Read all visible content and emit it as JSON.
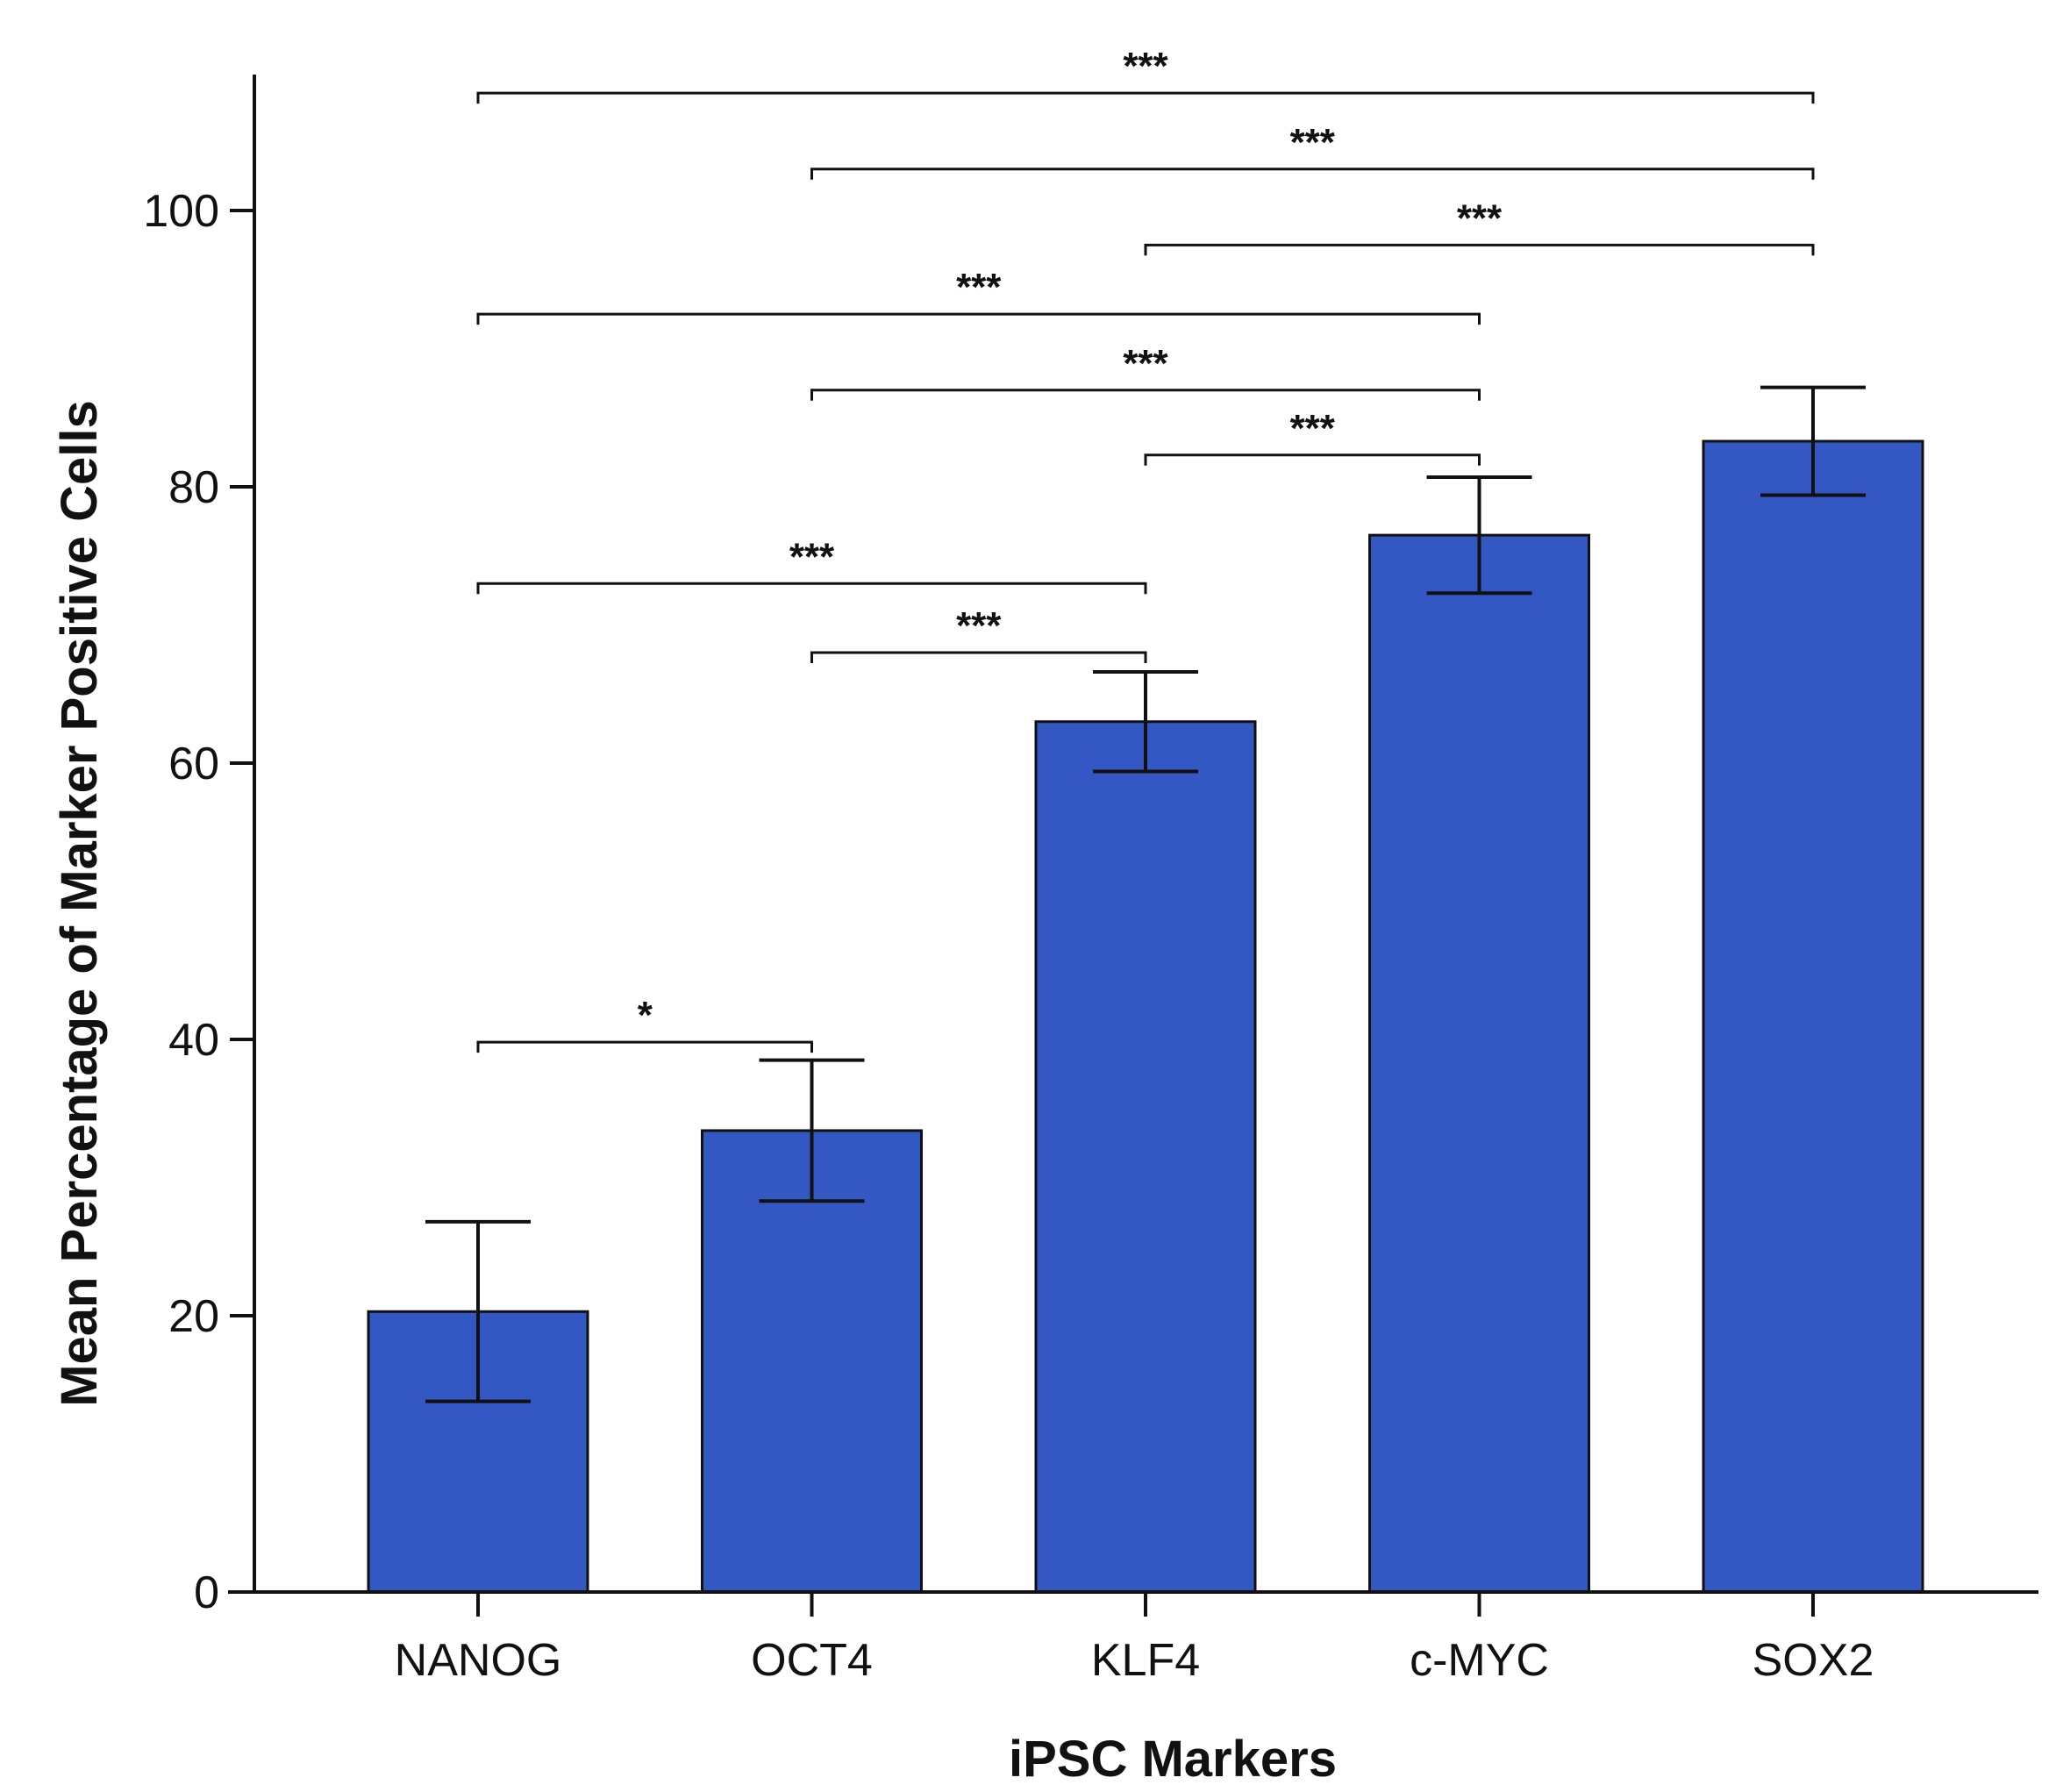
{
  "chart_data": {
    "type": "bar",
    "title": "",
    "xlabel": "iPSC Markers",
    "ylabel": "Mean Percentage of Marker Positive Cells",
    "categories": [
      "NANOG",
      "OCT4",
      "KLF4",
      "c-MYC",
      "SOX2"
    ],
    "values": [
      20.3,
      33.4,
      63.0,
      76.5,
      83.3
    ],
    "errors": [
      6.5,
      5.1,
      3.6,
      4.2,
      3.9
    ],
    "ylim": [
      0,
      110
    ],
    "yticks": [
      0,
      20,
      40,
      60,
      80,
      100
    ],
    "grid": false,
    "bar_color": "#3358c4",
    "significance": [
      {
        "from": "NANOG",
        "to": "SOX2",
        "y": 108.5,
        "label": "***"
      },
      {
        "from": "OCT4",
        "to": "SOX2",
        "y": 103.0,
        "label": "***"
      },
      {
        "from": "KLF4",
        "to": "SOX2",
        "y": 97.5,
        "label": "***"
      },
      {
        "from": "NANOG",
        "to": "c-MYC",
        "y": 92.5,
        "label": "***"
      },
      {
        "from": "OCT4",
        "to": "c-MYC",
        "y": 87.0,
        "label": "***"
      },
      {
        "from": "KLF4",
        "to": "c-MYC",
        "y": 82.3,
        "label": "***"
      },
      {
        "from": "NANOG",
        "to": "KLF4",
        "y": 73.0,
        "label": "***"
      },
      {
        "from": "OCT4",
        "to": "KLF4",
        "y": 68.0,
        "label": "***"
      },
      {
        "from": "NANOG",
        "to": "OCT4",
        "y": 39.8,
        "label": "*"
      }
    ]
  }
}
